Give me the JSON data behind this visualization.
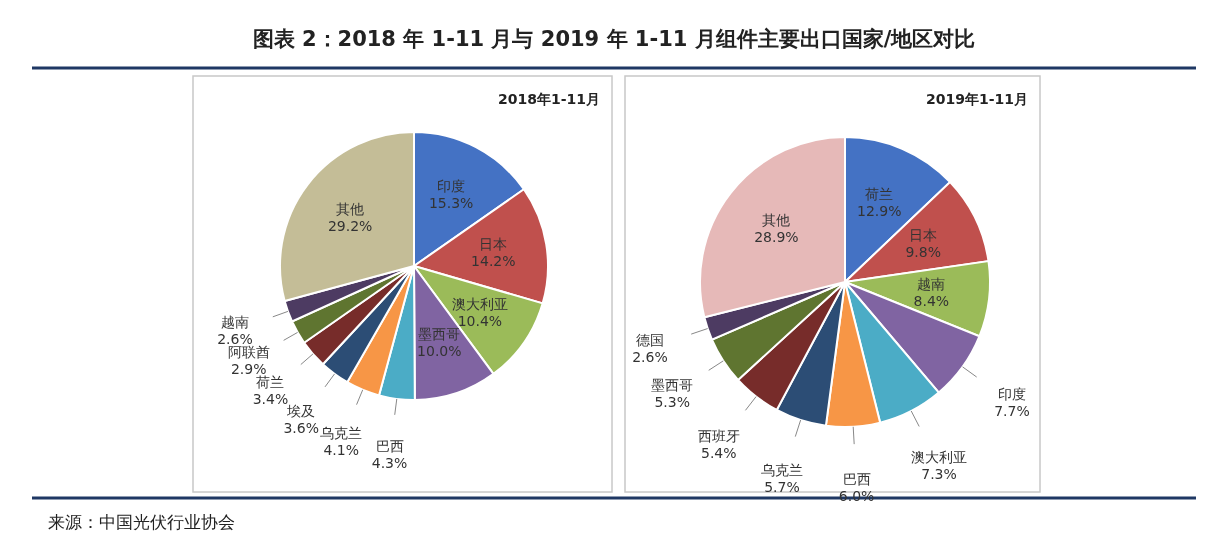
{
  "chart_data": [
    {
      "type": "pie",
      "title": "图表 2：2018 年 1-11 月与 2019 年 1-11 月组件主要出口国家/地区对比",
      "subtitle": "2018年1-11月",
      "categories": [
        "印度",
        "日本",
        "澳大利亚",
        "墨西哥",
        "巴西",
        "乌克兰",
        "埃及",
        "荷兰",
        "阿联酋",
        "越南",
        "其他"
      ],
      "values": [
        15.3,
        14.2,
        10.4,
        10.0,
        4.3,
        4.1,
        3.6,
        3.4,
        2.9,
        2.6,
        29.2
      ],
      "value_labels": [
        "15.3%",
        "14.2%",
        "10.4%",
        "10.0%",
        "4.3%",
        "4.1%",
        "3.6%",
        "3.4%",
        "2.9%",
        "2.6%",
        "29.2%"
      ],
      "colors": [
        "#4472c4",
        "#c0504d",
        "#9bbb59",
        "#8064a2",
        "#4bacc6",
        "#f79646",
        "#2c4d75",
        "#772c2a",
        "#5f7530",
        "#4d3b62",
        "#c4bd97"
      ],
      "annotations": [
        "来源：中国光伏行业协会"
      ]
    },
    {
      "type": "pie",
      "subtitle": "2019年1-11月",
      "categories": [
        "荷兰",
        "日本",
        "越南",
        "印度",
        "澳大利亚",
        "巴西",
        "乌克兰",
        "西班牙",
        "墨西哥",
        "德国",
        "其他"
      ],
      "values": [
        12.9,
        9.8,
        8.4,
        7.7,
        7.3,
        6.0,
        5.7,
        5.4,
        5.3,
        2.6,
        28.9
      ],
      "value_labels": [
        "12.9%",
        "9.8%",
        "8.4%",
        "7.7%",
        "7.3%",
        "6.0%",
        "5.7%",
        "5.4%",
        "5.3%",
        "2.6%",
        "28.9%"
      ],
      "colors": [
        "#4472c4",
        "#c0504d",
        "#9bbb59",
        "#8064a2",
        "#4bacc6",
        "#f79646",
        "#2c4d75",
        "#772c2a",
        "#5f7530",
        "#4d3b62",
        "#e6b9b8"
      ]
    }
  ]
}
